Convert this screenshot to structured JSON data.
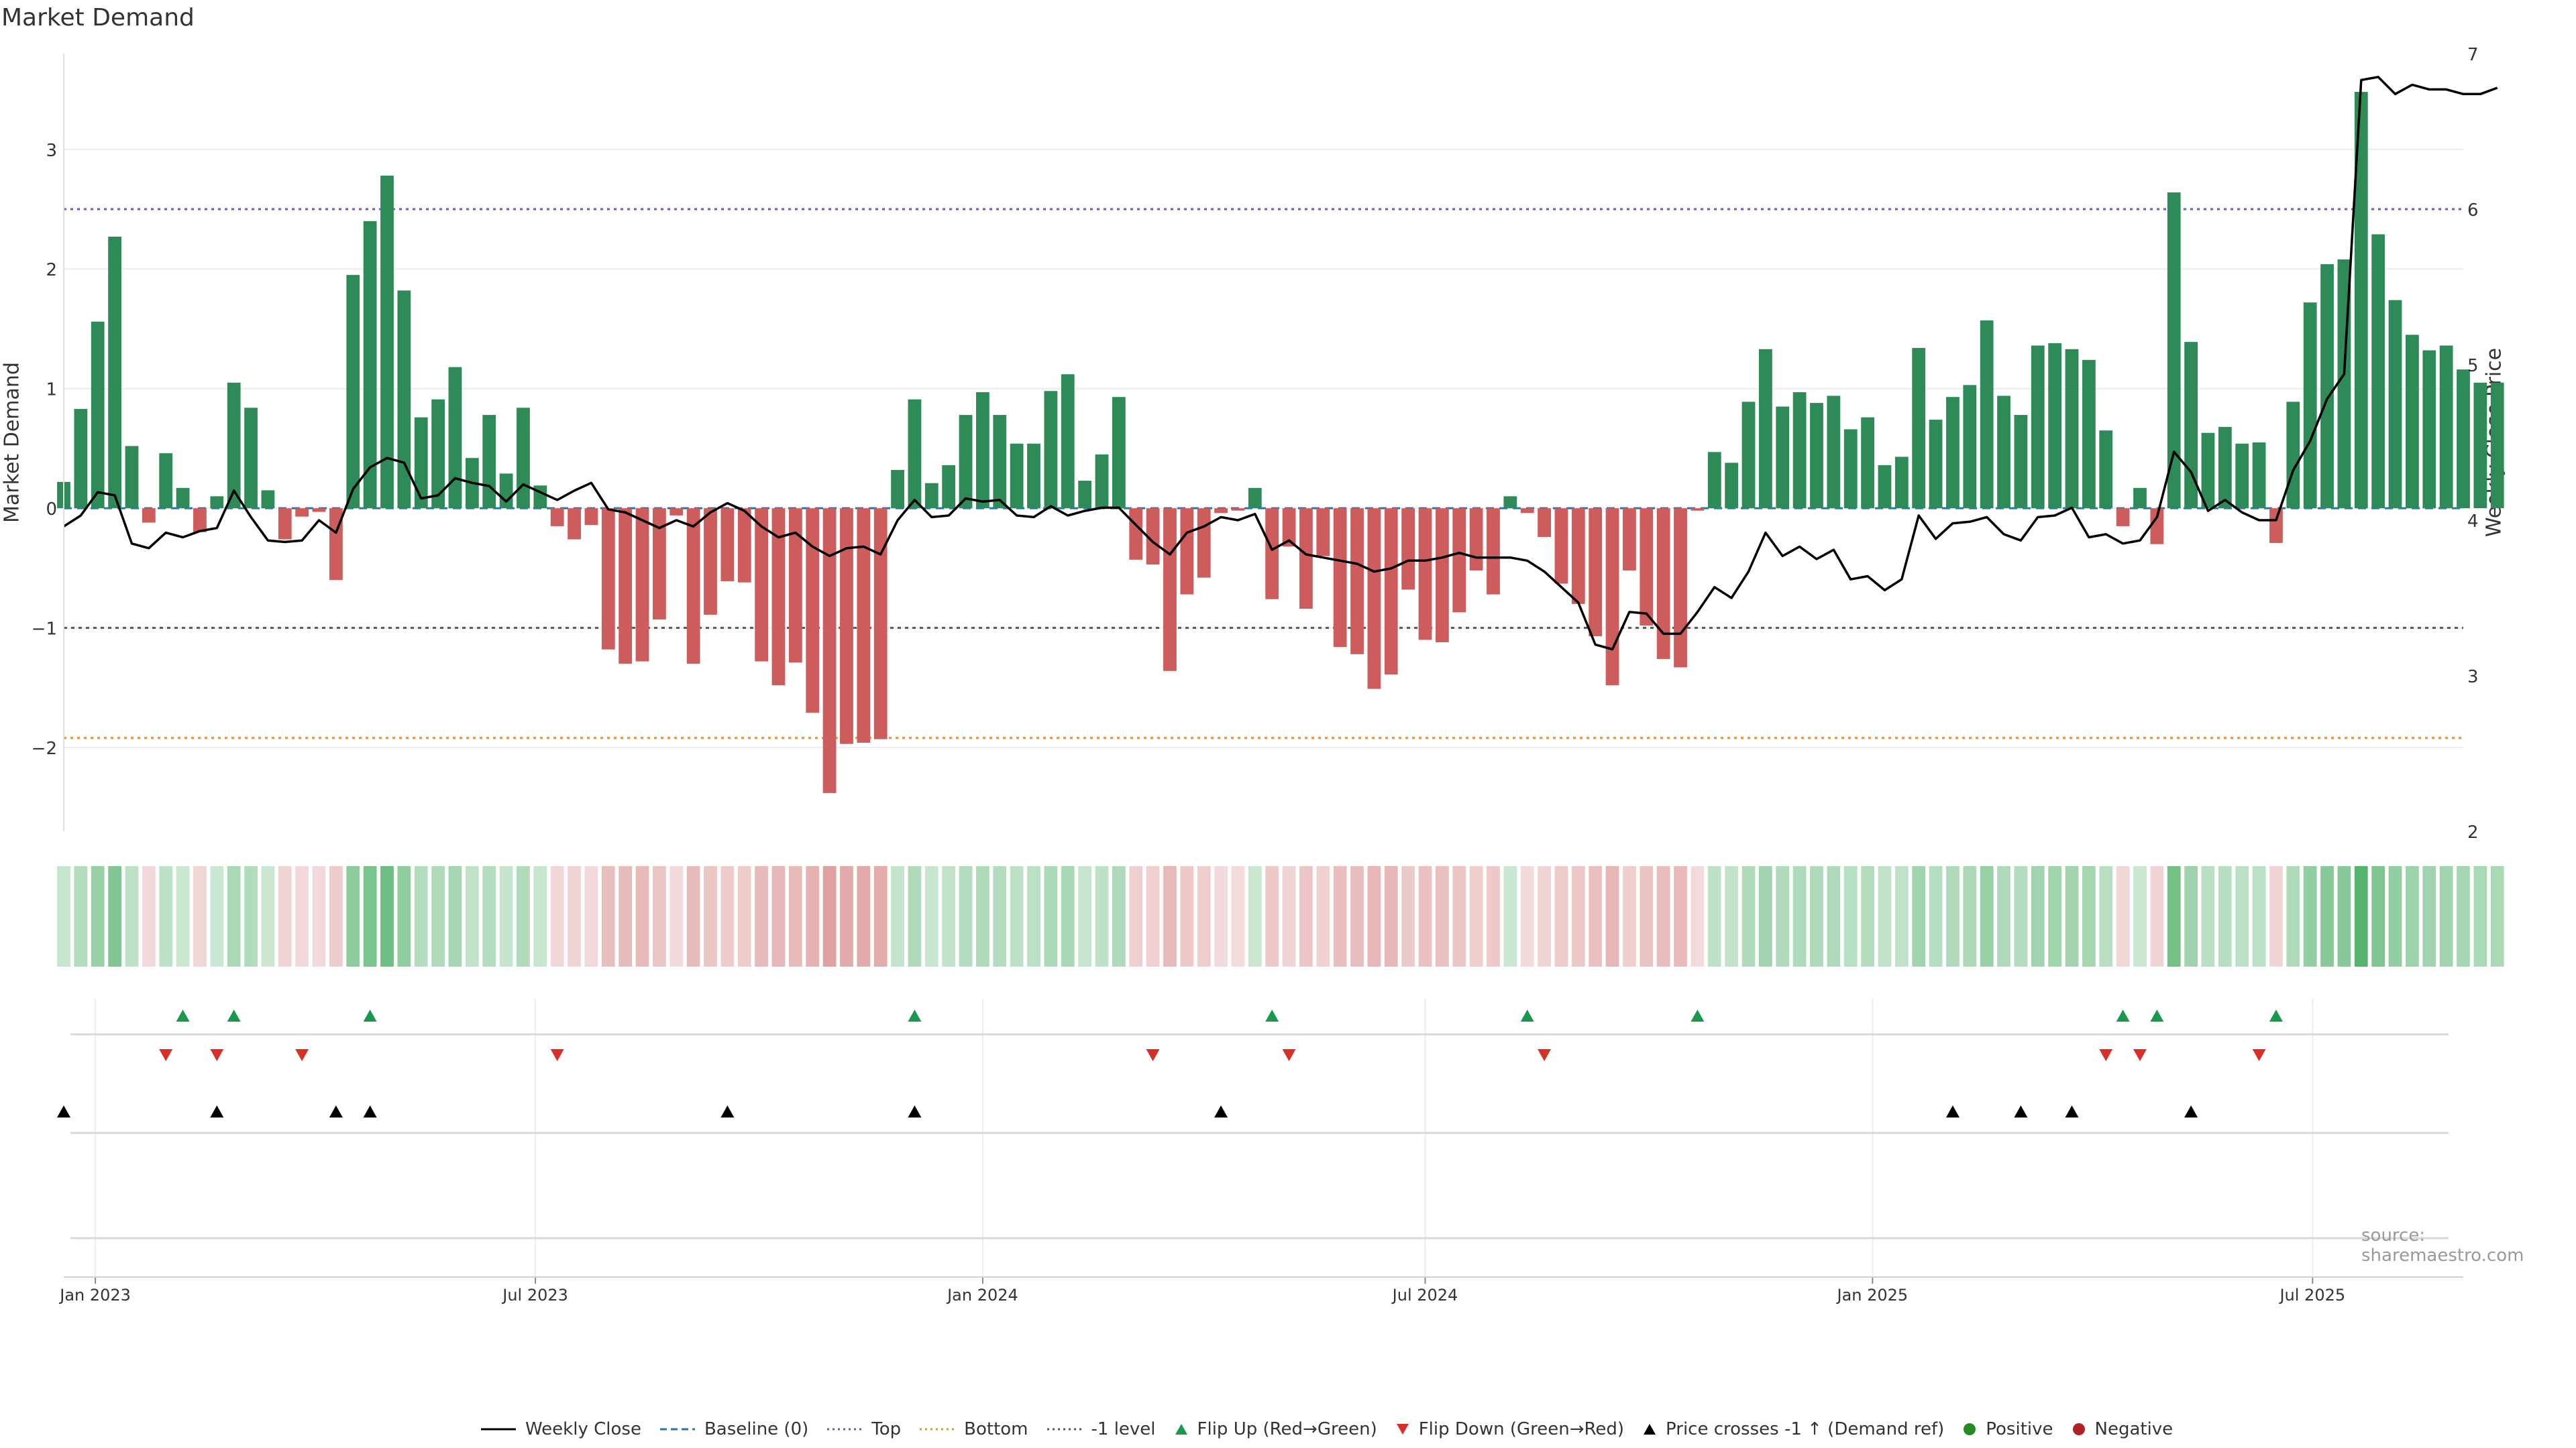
{
  "title": "Market Demand",
  "left_axis_label": "Market Demand",
  "right_axis_label": "Weekly Close Price",
  "source": "source: sharemaestro.com",
  "colors": {
    "positive": "#2e8b57",
    "negative": "#cd5c5c",
    "price_line": "#000000",
    "top_line": "#6a5acd",
    "bottom_line": "#ff8c00",
    "minus_one_line": "#555555",
    "baseline": "#1f77b4",
    "flip_up": "#1a9850",
    "flip_down": "#d73027",
    "cross": "#000000",
    "positive_dot": "#228b22",
    "negative_dot": "#b22222"
  },
  "chart_data": {
    "type": "bar",
    "title": "Market Demand",
    "ylabel": "Market Demand",
    "ylabel_right": "Weekly Close Price",
    "ylim": [
      -2.7,
      3.8
    ],
    "ylim_right": [
      2,
      7
    ],
    "yticks": [
      -2,
      -1,
      0,
      1,
      2,
      3
    ],
    "ytick_labels": [
      "−2",
      "−1",
      "0",
      "1",
      "2",
      "3"
    ],
    "yticks_right": [
      2,
      3,
      4,
      5,
      6,
      7
    ],
    "ytick_labels_right": [
      "2",
      "3",
      "4",
      "5",
      "6",
      "7"
    ],
    "x_start": "2022-12-19",
    "x_end": "2025-09-01",
    "week_start": "2022-12-19",
    "x_ticks": [
      {
        "label": "Jan 2023",
        "date": "2023-01-01"
      },
      {
        "label": "Jul 2023",
        "date": "2023-07-01"
      },
      {
        "label": "Jan 2024",
        "date": "2024-01-01"
      },
      {
        "label": "Jul 2024",
        "date": "2024-07-01"
      },
      {
        "label": "Jan 2025",
        "date": "2025-01-01"
      },
      {
        "label": "Jul 2025",
        "date": "2025-07-01"
      }
    ],
    "reference_lines": {
      "baseline": 0,
      "top": 2.5,
      "bottom": -1.92,
      "minus_one": -1
    },
    "demand": [
      0.22,
      0.83,
      1.56,
      2.27,
      0.52,
      -0.12,
      0.46,
      0.17,
      -0.2,
      0.1,
      1.05,
      0.84,
      0.15,
      -0.26,
      -0.07,
      -0.03,
      -0.6,
      1.95,
      2.4,
      2.78,
      1.82,
      0.76,
      0.91,
      1.18,
      0.42,
      0.78,
      0.29,
      0.84,
      0.19,
      -0.15,
      -0.26,
      -0.14,
      -1.18,
      -1.3,
      -1.28,
      -0.93,
      -0.06,
      -1.3,
      -0.89,
      -0.61,
      -0.62,
      -1.28,
      -1.48,
      -1.29,
      -1.71,
      -2.38,
      -1.97,
      -1.96,
      -1.93,
      0.32,
      0.91,
      0.21,
      0.36,
      0.78,
      0.97,
      0.78,
      0.54,
      0.54,
      0.98,
      1.12,
      0.23,
      0.45,
      0.93,
      -0.43,
      -0.47,
      -1.36,
      -0.72,
      -0.58,
      -0.04,
      -0.02,
      0.17,
      -0.76,
      -0.32,
      -0.84,
      -0.4,
      -1.16,
      -1.22,
      -1.51,
      -1.39,
      -0.68,
      -1.1,
      -1.12,
      -0.87,
      -0.52,
      -0.72,
      0.1,
      -0.04,
      -0.24,
      -0.63,
      -0.8,
      -1.07,
      -1.48,
      -0.52,
      -0.98,
      -1.26,
      -1.33,
      -0.02,
      0.47,
      0.38,
      0.89,
      1.33,
      0.85,
      0.97,
      0.88,
      0.94,
      0.66,
      0.76,
      0.36,
      0.43,
      1.34,
      0.74,
      0.93,
      1.03,
      1.57,
      0.94,
      0.78,
      1.36,
      1.38,
      1.33,
      1.24,
      0.65,
      -0.15,
      0.17,
      -0.3,
      2.64,
      1.39,
      0.63,
      0.68,
      0.54,
      0.55,
      -0.29,
      0.89,
      1.72,
      2.04,
      2.08,
      3.48,
      2.29,
      1.74,
      1.45,
      1.32,
      1.36,
      1.16,
      1.05,
      1.05
    ],
    "weekly_close": [
      3.96,
      4.03,
      4.18,
      4.16,
      3.85,
      3.82,
      3.92,
      3.89,
      3.93,
      3.95,
      4.19,
      4.02,
      3.87,
      3.86,
      3.87,
      4.0,
      3.92,
      4.2,
      4.34,
      4.4,
      4.37,
      4.14,
      4.16,
      4.27,
      4.24,
      4.22,
      4.12,
      4.23,
      4.18,
      4.13,
      4.19,
      4.24,
      4.07,
      4.05,
      4.0,
      3.95,
      4.0,
      3.96,
      4.05,
      4.11,
      4.06,
      3.96,
      3.89,
      3.92,
      3.83,
      3.77,
      3.82,
      3.83,
      3.78,
      4.0,
      4.13,
      4.02,
      4.03,
      4.14,
      4.12,
      4.13,
      4.03,
      4.02,
      4.09,
      4.03,
      4.06,
      4.08,
      4.08,
      3.97,
      3.86,
      3.78,
      3.92,
      3.96,
      4.02,
      4.0,
      4.04,
      3.81,
      3.87,
      3.78,
      3.76,
      3.74,
      3.72,
      3.67,
      3.69,
      3.74,
      3.74,
      3.76,
      3.79,
      3.76,
      3.76,
      3.76,
      3.74,
      3.67,
      3.57,
      3.47,
      3.2,
      3.17,
      3.41,
      3.4,
      3.27,
      3.27,
      3.41,
      3.57,
      3.5,
      3.67,
      3.92,
      3.77,
      3.83,
      3.75,
      3.81,
      3.62,
      3.64,
      3.55,
      3.62,
      4.03,
      3.88,
      3.98,
      3.99,
      4.02,
      3.91,
      3.87,
      4.02,
      4.03,
      4.08,
      3.89,
      3.91,
      3.85,
      3.87,
      4.02,
      4.44,
      4.31,
      4.06,
      4.13,
      4.05,
      4.0,
      4.0,
      4.32,
      4.51,
      4.78,
      4.94,
      6.83,
      6.85,
      6.74,
      6.8,
      6.77,
      6.77,
      6.74,
      6.74,
      6.78
    ],
    "flip_up_dates": [
      "2023-02-06",
      "2023-02-27",
      "2023-04-24",
      "2023-12-04",
      "2024-04-29",
      "2024-08-12",
      "2024-10-21",
      "2025-04-14",
      "2025-04-28",
      "2025-06-16"
    ],
    "flip_down_dates": [
      "2023-01-30",
      "2023-02-20",
      "2023-03-27",
      "2023-07-10",
      "2024-03-11",
      "2024-05-06",
      "2024-08-19",
      "2025-04-07",
      "2025-04-21",
      "2025-06-09"
    ],
    "price_cross_dates": [
      "2022-12-19",
      "2023-02-20",
      "2023-04-10",
      "2023-04-24",
      "2023-09-18",
      "2023-12-04",
      "2024-04-08",
      "2025-02-03",
      "2025-03-03",
      "2025-03-24",
      "2025-05-12"
    ]
  },
  "legend": [
    {
      "label": "Weekly Close",
      "symbol": "line-solid",
      "color_key": "price_line"
    },
    {
      "label": "Baseline (0)",
      "symbol": "line-dashed",
      "color_key": "baseline"
    },
    {
      "label": "Top",
      "symbol": "line-dotted",
      "color_key": "top_line"
    },
    {
      "label": "Bottom",
      "symbol": "line-dotted",
      "color_key": "bottom_line"
    },
    {
      "label": "-1 level",
      "symbol": "line-dotted",
      "color_key": "minus_one_line"
    },
    {
      "label": "Flip Up (Red→Green)",
      "symbol": "triangle-up",
      "color_key": "flip_up"
    },
    {
      "label": "Flip Down (Green→Red)",
      "symbol": "triangle-down",
      "color_key": "flip_down"
    },
    {
      "label": "Price crosses -1 ↑ (Demand ref)",
      "symbol": "triangle-up",
      "color_key": "cross"
    },
    {
      "label": "Positive",
      "symbol": "dot",
      "color_key": "positive_dot"
    },
    {
      "label": "Negative",
      "symbol": "dot",
      "color_key": "negative_dot"
    }
  ]
}
